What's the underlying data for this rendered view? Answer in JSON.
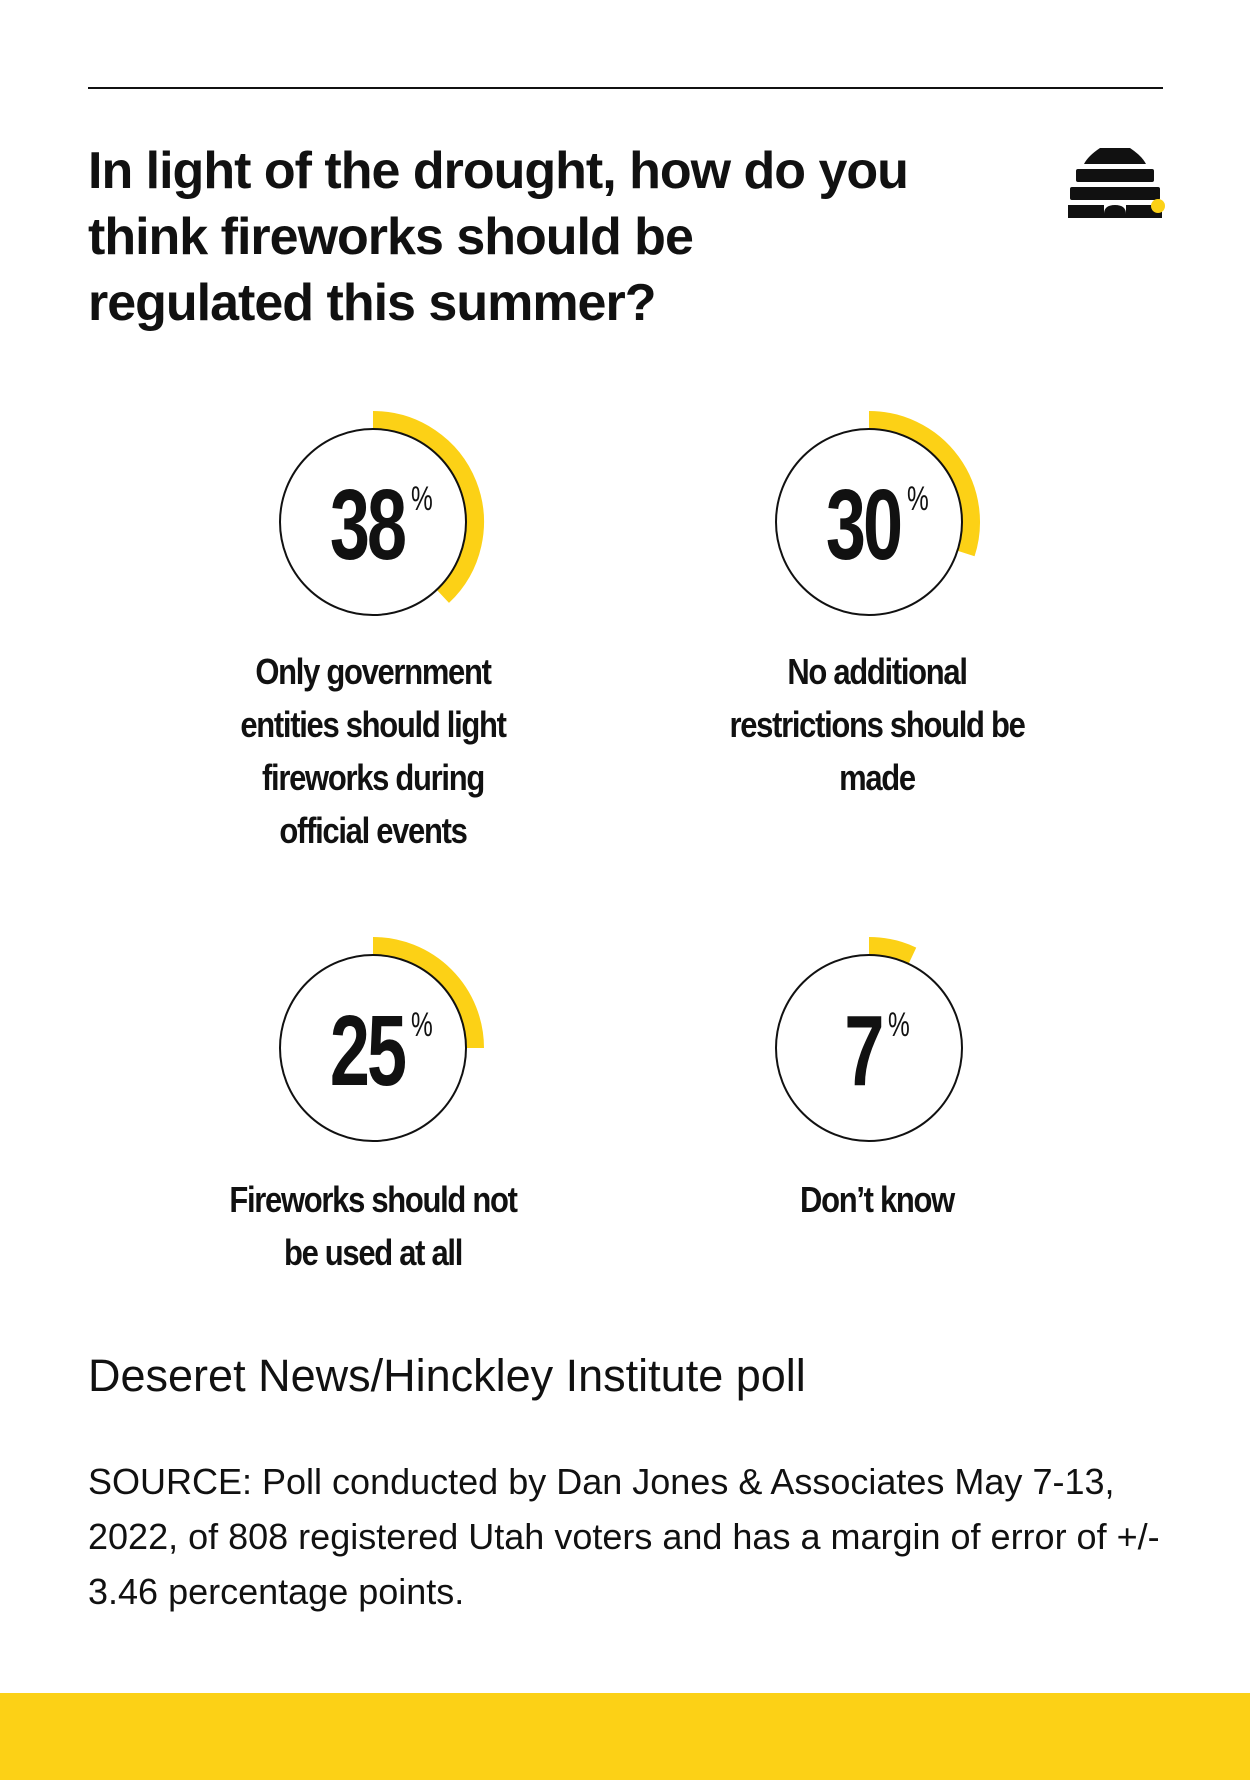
{
  "colors": {
    "accent": "#fcd116",
    "ink": "#111111",
    "background": "#ffffff"
  },
  "icons": {
    "logo": "beehive-icon"
  },
  "chart_data": {
    "type": "pie",
    "title": "In light of the drought, how do you think fireworks should be regulated this summer?",
    "subtitle": "Deseret News/Hinckley Institute poll",
    "source": "SOURCE: Poll conducted by Dan Jones & Associates May 7-13, 2022, of 808 registered Utah voters and has a margin of error of +/- 3.46 percentage points.",
    "unit": "%",
    "categories": [
      "Only government entities should light fireworks during official events",
      "No additional restrictions should be made",
      "Fireworks should not be used at all",
      "Don’t know"
    ],
    "values": [
      38,
      30,
      25,
      7
    ]
  }
}
